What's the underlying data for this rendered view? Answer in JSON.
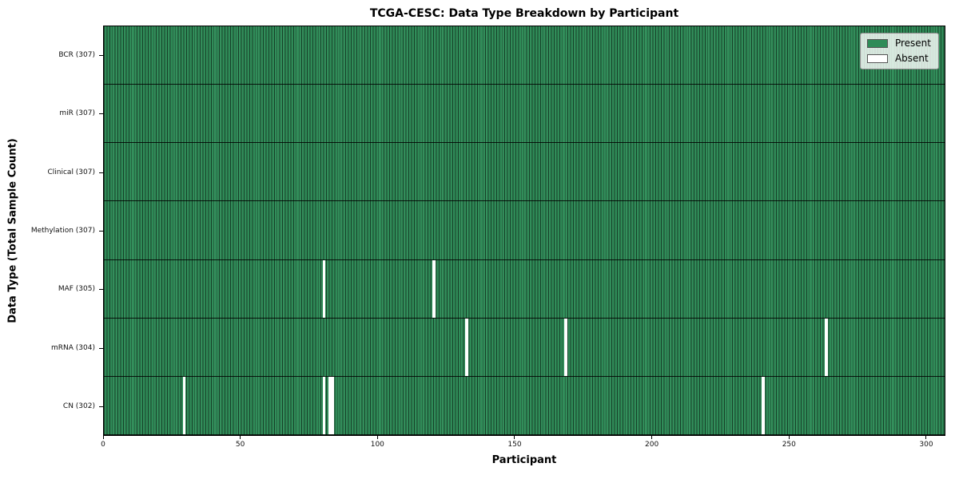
{
  "chart_data": {
    "type": "heatmap",
    "title": "TCGA-CESC: Data Type Breakdown by Participant",
    "xlabel": "Participant",
    "ylabel": "Data Type (Total Sample Count)",
    "x_ticks": [
      0,
      50,
      100,
      150,
      200,
      250,
      300
    ],
    "x_range": [
      0,
      307
    ],
    "n_participants": 307,
    "rows": [
      {
        "name": "BCR",
        "label": "BCR (307)",
        "present_count": 307,
        "absent_participants": []
      },
      {
        "name": "miR",
        "label": "miR (307)",
        "present_count": 307,
        "absent_participants": []
      },
      {
        "name": "Clinical",
        "label": "Clinical (307)",
        "present_count": 307,
        "absent_participants": []
      },
      {
        "name": "Methylation",
        "label": "Methylation (307)",
        "present_count": 307,
        "absent_participants": []
      },
      {
        "name": "MAF",
        "label": "MAF (305)",
        "present_count": 305,
        "absent_participants": [
          80,
          120
        ]
      },
      {
        "name": "mRNA",
        "label": "mRNA (304)",
        "present_count": 304,
        "absent_participants": [
          132,
          168,
          263
        ]
      },
      {
        "name": "CN",
        "label": "CN (302)",
        "present_count": 302,
        "absent_participants": [
          29,
          80,
          82,
          83,
          240
        ]
      }
    ],
    "legend": {
      "position": "upper right",
      "items": [
        {
          "label": "Present",
          "color": "#2E8B57"
        },
        {
          "label": "Absent",
          "color": "#FFFFFF"
        }
      ]
    },
    "colors": {
      "present": "#2E8B57",
      "absent": "#FFFFFF",
      "cell_border": "rgba(0,0,0,0.55)",
      "row_separator": "rgba(0,0,0,0.85)"
    },
    "grid": false
  }
}
